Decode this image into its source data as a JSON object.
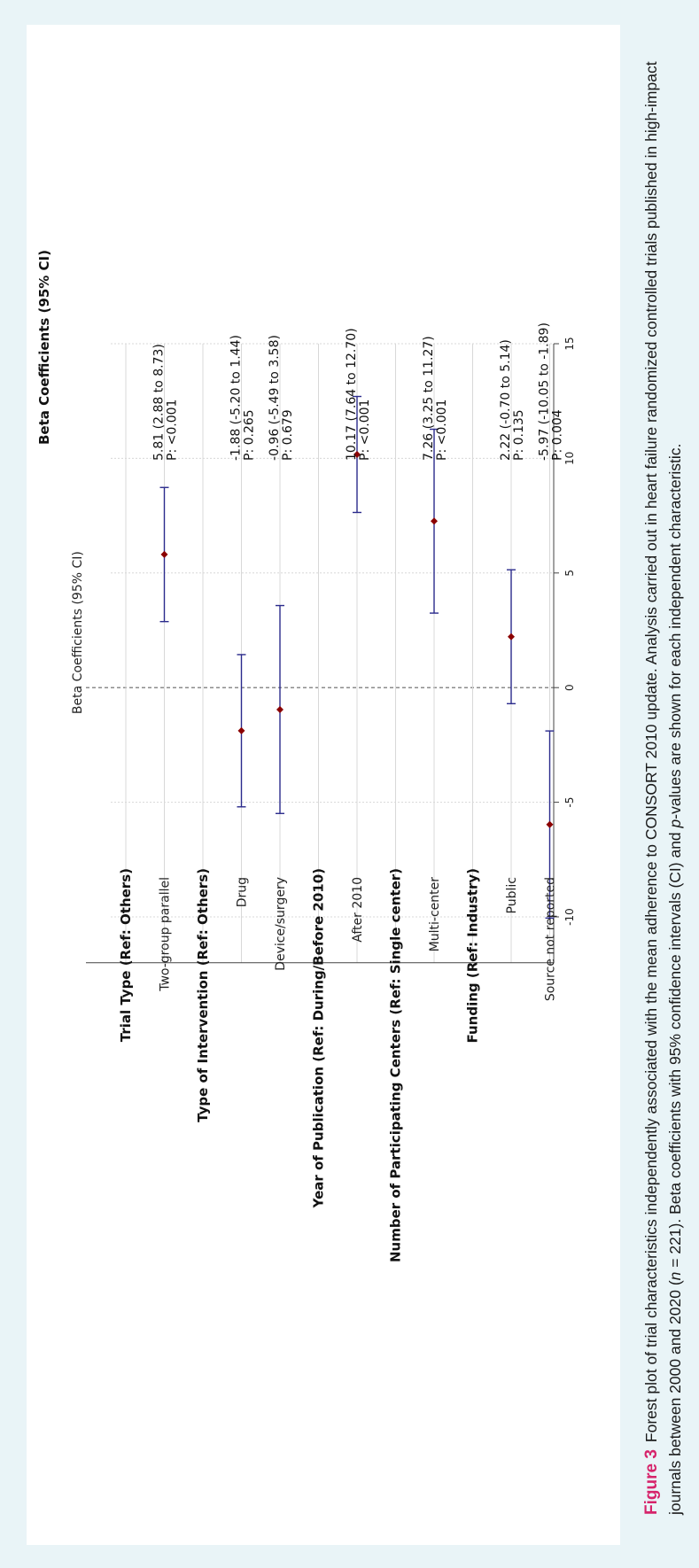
{
  "figure": {
    "label": "Figure 3",
    "caption_part1": "Forest plot of trial characteristics independently associated with the mean adherence to CONSORT 2010 update. Analysis carried out in heart failure randomized controlled trials published in high-impact journals between 2000 and 2020 (",
    "caption_n": "n",
    "caption_part2": " = 221). Beta coefficients with 95% confidence intervals (CI) and ",
    "caption_p": "p",
    "caption_part3": "-values are shown for each independent characteristic."
  },
  "chart_data": {
    "type": "forest",
    "axis_title": "Beta Coefficients (95% CI)",
    "column_header": "Beta Coefficients (95% CI)",
    "xlim": [
      -12,
      15
    ],
    "ticks": [
      -10,
      -5,
      0,
      5,
      10,
      15
    ],
    "tick_labels": [
      "-10",
      "-5",
      "0",
      "5",
      "10",
      "15"
    ],
    "reference_line": 0,
    "grid": true,
    "colors": {
      "point": "#8b0000",
      "ci": "#2b2b8c",
      "grid": "#d8d8d8",
      "reference": "#666666"
    },
    "rows": [
      {
        "label": "Trial Type (Ref: Others)",
        "header": true
      },
      {
        "label": "Two-group parallel",
        "header": false,
        "estimate": 5.81,
        "lower": 2.88,
        "upper": 8.73,
        "ci_text": "5.81 (2.88 to 8.73)",
        "p_text": "P: <0.001"
      },
      {
        "label": "Type of Intervention (Ref: Others)",
        "header": true
      },
      {
        "label": "Drug",
        "header": false,
        "estimate": -1.88,
        "lower": -5.2,
        "upper": 1.44,
        "ci_text": "-1.88 (-5.20 to 1.44)",
        "p_text": "P: 0.265"
      },
      {
        "label": "Device/surgery",
        "header": false,
        "estimate": -0.96,
        "lower": -5.49,
        "upper": 3.58,
        "ci_text": "-0.96 (-5.49 to 3.58)",
        "p_text": "P: 0.679"
      },
      {
        "label": "Year of Publication (Ref: During/Before 2010)",
        "header": true
      },
      {
        "label": "After 2010",
        "header": false,
        "estimate": 10.17,
        "lower": 7.64,
        "upper": 12.7,
        "ci_text": "10.17 (7.64 to 12.70)",
        "p_text": "P: <0.001"
      },
      {
        "label": "Number of Participating Centers (Ref: Single center)",
        "header": true
      },
      {
        "label": "Multi-center",
        "header": false,
        "estimate": 7.26,
        "lower": 3.25,
        "upper": 11.27,
        "ci_text": "7.26 (3.25 to 11.27)",
        "p_text": "P: <0.001"
      },
      {
        "label": "Funding  (Ref: Industry)",
        "header": true
      },
      {
        "label": "Public",
        "header": false,
        "estimate": 2.22,
        "lower": -0.7,
        "upper": 5.14,
        "ci_text": "2.22 (-0.70 to 5.14)",
        "p_text": "P: 0.135"
      },
      {
        "label": "Source not reported",
        "header": false,
        "estimate": -5.97,
        "lower": -10.05,
        "upper": -1.89,
        "ci_text": "-5.97 (-10.05 to -1.89)",
        "p_text": "P: 0.004"
      }
    ]
  }
}
